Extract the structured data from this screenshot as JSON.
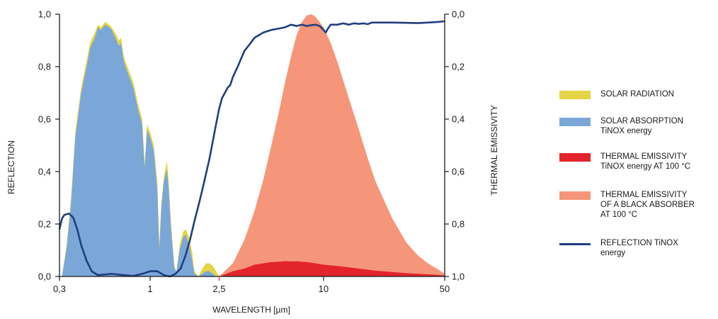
{
  "chart_data": {
    "type": "area",
    "xlabel": "WAVELENGTH [µm]",
    "ylabel_left": "REFLECTION",
    "ylabel_right": "THERMAL EMISSIVITY",
    "x_scale": "log",
    "xlim": [
      0.3,
      50
    ],
    "x_ticks": [
      {
        "value": 0.3,
        "label": "0,3"
      },
      {
        "value": 1,
        "label": "1"
      },
      {
        "value": 2.5,
        "label": "2,5",
        "color": "#e3242b"
      },
      {
        "value": 10,
        "label": "10"
      },
      {
        "value": 50,
        "label": "50"
      }
    ],
    "ylim_left": [
      0,
      1
    ],
    "y_ticks_left": [
      "0,0",
      "0,2",
      "0,4",
      "0,6",
      "0,8",
      "1,0"
    ],
    "ylim_right": [
      1,
      0
    ],
    "y_ticks_right": [
      "1,0",
      "0,8",
      "0,6",
      "0,4",
      "0,2",
      "0,0"
    ],
    "grid": false,
    "legend_position": "right",
    "series": [
      {
        "name": "SOLAR RADIATION",
        "style": "area",
        "color": "#e5d445",
        "points": [
          [
            0.31,
            0
          ],
          [
            0.33,
            0.12
          ],
          [
            0.35,
            0.3
          ],
          [
            0.37,
            0.55
          ],
          [
            0.4,
            0.72
          ],
          [
            0.43,
            0.82
          ],
          [
            0.45,
            0.89
          ],
          [
            0.48,
            0.93
          ],
          [
            0.5,
            0.96
          ],
          [
            0.52,
            0.95
          ],
          [
            0.55,
            0.97
          ],
          [
            0.58,
            0.96
          ],
          [
            0.6,
            0.95
          ],
          [
            0.64,
            0.92
          ],
          [
            0.66,
            0.9
          ],
          [
            0.68,
            0.91
          ],
          [
            0.7,
            0.85
          ],
          [
            0.72,
            0.82
          ],
          [
            0.76,
            0.78
          ],
          [
            0.8,
            0.74
          ],
          [
            0.85,
            0.66
          ],
          [
            0.9,
            0.6
          ],
          [
            0.93,
            0.43
          ],
          [
            0.96,
            0.58
          ],
          [
            1.0,
            0.55
          ],
          [
            1.05,
            0.5
          ],
          [
            1.1,
            0.36
          ],
          [
            1.13,
            0.12
          ],
          [
            1.16,
            0.28
          ],
          [
            1.2,
            0.38
          ],
          [
            1.25,
            0.44
          ],
          [
            1.28,
            0.36
          ],
          [
            1.32,
            0.2
          ],
          [
            1.38,
            0.04
          ],
          [
            1.42,
            0.02
          ],
          [
            1.48,
            0.12
          ],
          [
            1.55,
            0.17
          ],
          [
            1.6,
            0.18
          ],
          [
            1.68,
            0.15
          ],
          [
            1.75,
            0.09
          ],
          [
            1.8,
            0.02
          ],
          [
            1.9,
            0.0
          ],
          [
            2.0,
            0.03
          ],
          [
            2.1,
            0.05
          ],
          [
            2.2,
            0.05
          ],
          [
            2.3,
            0.04
          ],
          [
            2.4,
            0.02
          ],
          [
            2.5,
            0.0
          ]
        ]
      },
      {
        "name": "SOLAR ABSORPTION",
        "name_line2": "TiNOX energy",
        "style": "area",
        "color": "#7ba7d8",
        "points": [
          [
            0.31,
            0
          ],
          [
            0.33,
            0.11
          ],
          [
            0.35,
            0.28
          ],
          [
            0.37,
            0.53
          ],
          [
            0.4,
            0.7
          ],
          [
            0.43,
            0.8
          ],
          [
            0.45,
            0.87
          ],
          [
            0.48,
            0.91
          ],
          [
            0.5,
            0.95
          ],
          [
            0.52,
            0.94
          ],
          [
            0.55,
            0.96
          ],
          [
            0.58,
            0.95
          ],
          [
            0.6,
            0.94
          ],
          [
            0.64,
            0.9
          ],
          [
            0.66,
            0.88
          ],
          [
            0.68,
            0.89
          ],
          [
            0.7,
            0.83
          ],
          [
            0.72,
            0.8
          ],
          [
            0.76,
            0.76
          ],
          [
            0.8,
            0.72
          ],
          [
            0.85,
            0.64
          ],
          [
            0.9,
            0.58
          ],
          [
            0.93,
            0.41
          ],
          [
            0.96,
            0.56
          ],
          [
            1.0,
            0.53
          ],
          [
            1.05,
            0.48
          ],
          [
            1.1,
            0.33
          ],
          [
            1.13,
            0.1
          ],
          [
            1.16,
            0.26
          ],
          [
            1.2,
            0.36
          ],
          [
            1.25,
            0.41
          ],
          [
            1.28,
            0.33
          ],
          [
            1.32,
            0.18
          ],
          [
            1.38,
            0.03
          ],
          [
            1.42,
            0.02
          ],
          [
            1.48,
            0.1
          ],
          [
            1.55,
            0.15
          ],
          [
            1.6,
            0.16
          ],
          [
            1.68,
            0.12
          ],
          [
            1.75,
            0.06
          ],
          [
            1.8,
            0.01
          ],
          [
            1.9,
            0.0
          ],
          [
            2.0,
            0.01
          ],
          [
            2.1,
            0.02
          ],
          [
            2.2,
            0.02
          ],
          [
            2.3,
            0.01
          ],
          [
            2.4,
            0.0
          ],
          [
            2.5,
            0.0
          ]
        ]
      },
      {
        "name": "THERMAL EMISSIVITY",
        "name_line2": "OF A BLACK ABSORBER",
        "name_line3": "AT 100 °C",
        "style": "area",
        "color": "#f5967a",
        "points": [
          [
            2.5,
            0.0
          ],
          [
            3.0,
            0.05
          ],
          [
            3.5,
            0.14
          ],
          [
            4.0,
            0.25
          ],
          [
            4.5,
            0.37
          ],
          [
            5.0,
            0.5
          ],
          [
            5.5,
            0.62
          ],
          [
            6.0,
            0.74
          ],
          [
            6.5,
            0.84
          ],
          [
            7.0,
            0.92
          ],
          [
            7.5,
            0.97
          ],
          [
            8.0,
            0.995
          ],
          [
            8.5,
            1.0
          ],
          [
            9.0,
            0.99
          ],
          [
            10.0,
            0.95
          ],
          [
            11.0,
            0.89
          ],
          [
            12.0,
            0.82
          ],
          [
            14.0,
            0.68
          ],
          [
            16.0,
            0.56
          ],
          [
            18.0,
            0.45
          ],
          [
            20.0,
            0.36
          ],
          [
            25.0,
            0.22
          ],
          [
            30.0,
            0.13
          ],
          [
            35.0,
            0.08
          ],
          [
            40.0,
            0.05
          ],
          [
            45.0,
            0.03
          ],
          [
            50.0,
            0.01
          ]
        ]
      },
      {
        "name": "THERMAL EMISSIVITY",
        "name_line2": "TiNOX energy AT 100 °C",
        "style": "area",
        "color": "#e3242b",
        "points": [
          [
            2.5,
            0.0
          ],
          [
            3.0,
            0.02
          ],
          [
            3.5,
            0.03
          ],
          [
            4.0,
            0.045
          ],
          [
            4.5,
            0.05
          ],
          [
            5.0,
            0.055
          ],
          [
            5.5,
            0.056
          ],
          [
            6.0,
            0.058
          ],
          [
            6.5,
            0.057
          ],
          [
            7.0,
            0.058
          ],
          [
            7.5,
            0.056
          ],
          [
            8.0,
            0.055
          ],
          [
            9.0,
            0.05
          ],
          [
            10.0,
            0.045
          ],
          [
            12.0,
            0.04
          ],
          [
            14.0,
            0.035
          ],
          [
            16.0,
            0.03
          ],
          [
            20.0,
            0.022
          ],
          [
            25.0,
            0.017
          ],
          [
            30.0,
            0.013
          ],
          [
            40.0,
            0.008
          ],
          [
            50.0,
            0.004
          ]
        ]
      },
      {
        "name": "REFLECTION TiNOX",
        "name_line2": "energy",
        "style": "line",
        "color": "#1f3f7f",
        "points": [
          [
            0.3,
            0.18
          ],
          [
            0.31,
            0.22
          ],
          [
            0.32,
            0.235
          ],
          [
            0.34,
            0.24
          ],
          [
            0.36,
            0.225
          ],
          [
            0.38,
            0.18
          ],
          [
            0.4,
            0.12
          ],
          [
            0.43,
            0.06
          ],
          [
            0.46,
            0.02
          ],
          [
            0.5,
            0.005
          ],
          [
            0.6,
            0.01
          ],
          [
            0.7,
            0.005
          ],
          [
            0.8,
            0.002
          ],
          [
            0.9,
            0.01
          ],
          [
            1.0,
            0.02
          ],
          [
            1.1,
            0.02
          ],
          [
            1.2,
            0.005
          ],
          [
            1.3,
            0.0
          ],
          [
            1.4,
            0.01
          ],
          [
            1.5,
            0.03
          ],
          [
            1.6,
            0.08
          ],
          [
            1.7,
            0.14
          ],
          [
            1.8,
            0.21
          ],
          [
            1.9,
            0.27
          ],
          [
            2.0,
            0.33
          ],
          [
            2.2,
            0.45
          ],
          [
            2.4,
            0.58
          ],
          [
            2.5,
            0.64
          ],
          [
            2.6,
            0.68
          ],
          [
            2.7,
            0.7
          ],
          [
            2.8,
            0.72
          ],
          [
            2.9,
            0.73
          ],
          [
            3.0,
            0.76
          ],
          [
            3.2,
            0.8
          ],
          [
            3.5,
            0.86
          ],
          [
            3.8,
            0.89
          ],
          [
            4.0,
            0.91
          ],
          [
            4.5,
            0.93
          ],
          [
            5.0,
            0.94
          ],
          [
            5.5,
            0.945
          ],
          [
            6.0,
            0.95
          ],
          [
            6.5,
            0.96
          ],
          [
            7.0,
            0.955
          ],
          [
            7.5,
            0.96
          ],
          [
            8.0,
            0.955
          ],
          [
            8.5,
            0.958
          ],
          [
            9.0,
            0.96
          ],
          [
            9.5,
            0.955
          ],
          [
            10.0,
            0.94
          ],
          [
            10.3,
            0.93
          ],
          [
            10.6,
            0.945
          ],
          [
            11.0,
            0.96
          ],
          [
            12.0,
            0.96
          ],
          [
            13.0,
            0.965
          ],
          [
            14.0,
            0.96
          ],
          [
            15.0,
            0.965
          ],
          [
            16.0,
            0.963
          ],
          [
            17.0,
            0.965
          ],
          [
            18.0,
            0.962
          ],
          [
            19.0,
            0.968
          ],
          [
            20.0,
            0.968
          ],
          [
            25.0,
            0.968
          ],
          [
            30.0,
            0.967
          ],
          [
            35.0,
            0.966
          ],
          [
            40.0,
            0.968
          ],
          [
            45.0,
            0.97
          ],
          [
            50.0,
            0.973
          ]
        ]
      }
    ]
  }
}
